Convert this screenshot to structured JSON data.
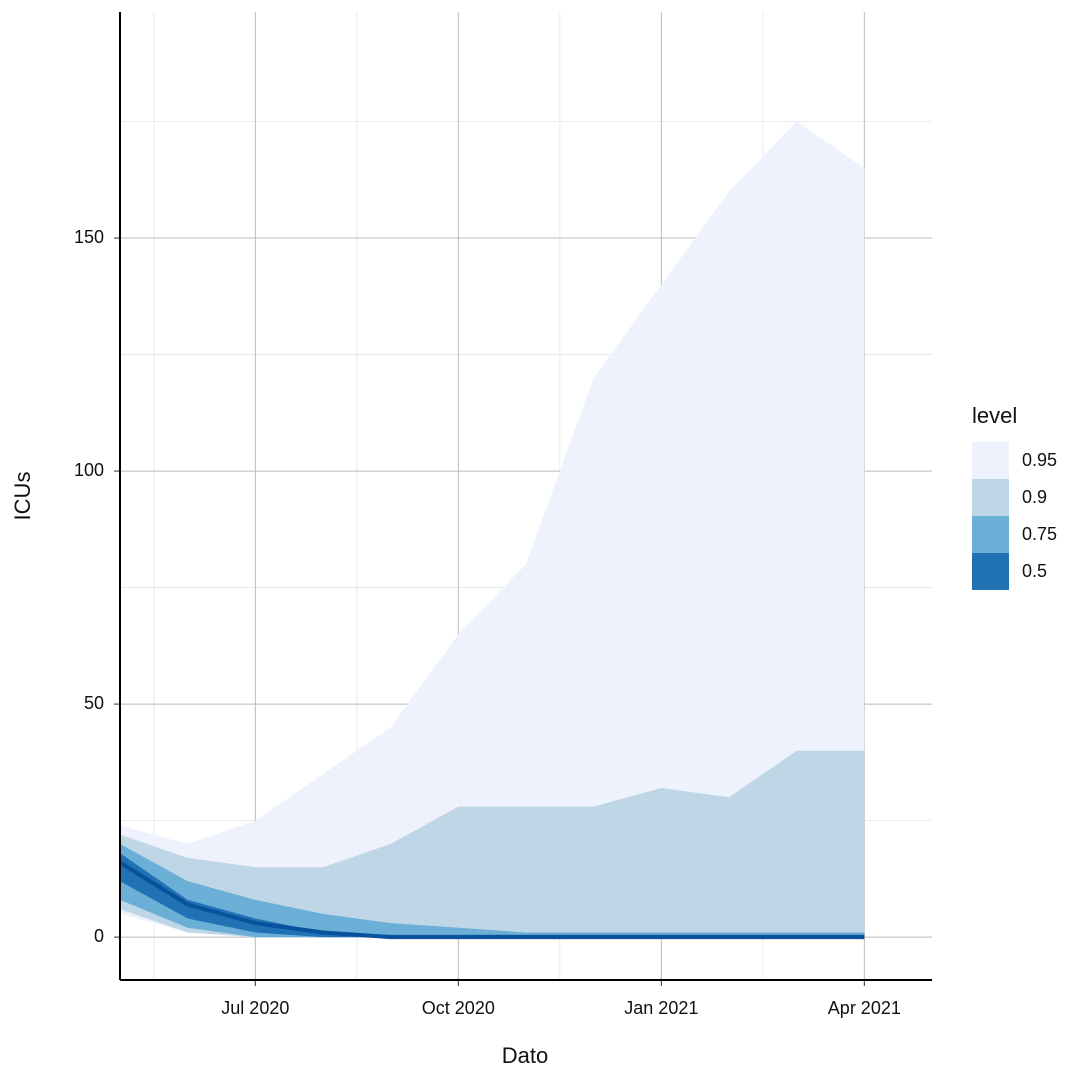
{
  "chart_data": {
    "type": "fan",
    "x_label": "Dato",
    "y_label": "ICUs",
    "legend_title": "level",
    "legend": "right",
    "x": [
      "2020-05",
      "2020-06",
      "2020-07",
      "2020-08",
      "2020-09",
      "2020-10",
      "2020-11",
      "2020-12",
      "2021-01",
      "2021-02",
      "2021-03",
      "2021-04"
    ],
    "xlim": [
      "2020-05",
      "2021-05"
    ],
    "xticks": [
      {
        "value": "2020-07",
        "label": "Jul 2020"
      },
      {
        "value": "2020-10",
        "label": "Oct 2020"
      },
      {
        "value": "2021-01",
        "label": "Jan 2021"
      },
      {
        "value": "2021-04",
        "label": "Apr 2021"
      }
    ],
    "ylim": [
      -9.2,
      198.5
    ],
    "yticks": [
      0,
      50,
      100,
      150
    ],
    "grid": true,
    "series": [
      {
        "name": "0.95",
        "color": "#eef2fd",
        "upper": [
          24,
          20,
          25,
          35,
          45,
          65,
          80,
          120,
          140,
          160,
          175,
          165
        ],
        "lower": [
          5,
          1,
          0,
          0,
          0,
          0,
          0,
          0,
          0,
          0,
          0,
          0
        ]
      },
      {
        "name": "0.9",
        "color": "#bfd6e6",
        "upper": [
          22,
          17,
          15,
          15,
          20,
          28,
          28,
          28,
          32,
          30,
          40,
          40
        ],
        "lower": [
          6,
          1,
          0,
          0,
          0,
          0,
          0,
          0,
          0,
          0,
          0,
          0
        ]
      },
      {
        "name": "0.75",
        "color": "#6baed6",
        "upper": [
          20,
          12,
          8,
          5,
          3,
          2,
          1,
          1,
          1,
          1,
          1,
          1
        ],
        "lower": [
          8,
          2,
          0,
          0,
          0,
          0,
          0,
          0,
          0,
          0,
          0,
          0
        ]
      },
      {
        "name": "0.5",
        "color": "#2171b5",
        "upper": [
          18,
          8,
          4,
          1,
          0.5,
          0.5,
          0.5,
          0.5,
          0.5,
          0.5,
          0.5,
          0.5
        ],
        "lower": [
          12,
          4,
          1,
          0,
          0,
          0,
          0,
          0,
          0,
          0,
          0,
          0
        ]
      }
    ],
    "median": {
      "color": "#08519c",
      "values": [
        16,
        7,
        3,
        1,
        0,
        0,
        0,
        0,
        0,
        0,
        0,
        0
      ]
    }
  }
}
